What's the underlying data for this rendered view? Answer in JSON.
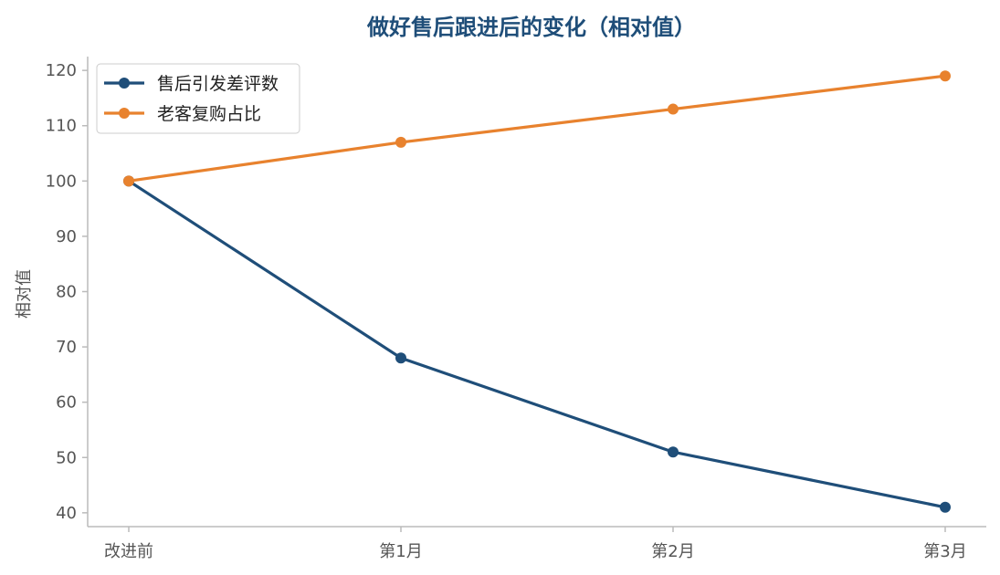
{
  "chart_data": {
    "type": "line",
    "title": "做好售后跟进后的变化（相对值）",
    "xlabel": "",
    "ylabel": "相对值",
    "categories": [
      "改进前",
      "第1月",
      "第2月",
      "第3月"
    ],
    "ylim": [
      37.5,
      122.5
    ],
    "yticks": [
      40,
      50,
      60,
      70,
      80,
      90,
      100,
      110,
      120
    ],
    "grid": false,
    "legend_position": "top-left",
    "series": [
      {
        "name": "售后引发差评数",
        "values": [
          100,
          68,
          51,
          41
        ],
        "color": "#1f4e79"
      },
      {
        "name": "老客复购占比",
        "values": [
          100,
          107,
          113,
          119
        ],
        "color": "#e8822e"
      }
    ],
    "colors": {
      "title": "#1f4e79",
      "axis": "#bbbbbb"
    }
  }
}
